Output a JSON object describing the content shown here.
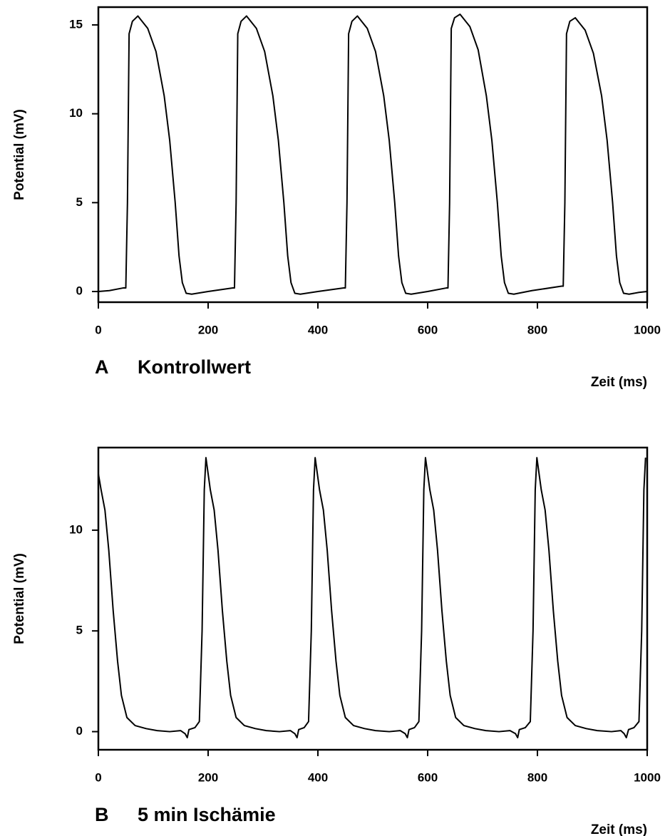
{
  "chart_data": [
    {
      "type": "line",
      "panel": "A",
      "title": "Kontrollwert",
      "xlabel": "Zeit (ms)",
      "ylabel": "Potential (mV)",
      "color": "#000000",
      "xlim": [
        0,
        1000
      ],
      "ylim": [
        -0.6,
        16
      ],
      "xticks": [
        0,
        200,
        400,
        600,
        800,
        1000
      ],
      "yticks": [
        0,
        5,
        10,
        15
      ],
      "x": [
        0,
        20,
        45,
        50,
        53,
        56,
        62,
        72,
        90,
        105,
        120,
        130,
        140,
        147,
        153,
        160,
        170,
        200,
        245,
        248,
        251,
        254,
        260,
        270,
        288,
        303,
        318,
        328,
        338,
        345,
        351,
        358,
        368,
        400,
        447,
        450,
        453,
        456,
        462,
        472,
        490,
        505,
        520,
        530,
        540,
        547,
        553,
        560,
        570,
        600,
        634,
        637,
        640,
        643,
        649,
        659,
        677,
        692,
        707,
        717,
        727,
        734,
        740,
        747,
        757,
        790,
        844,
        847,
        850,
        853,
        859,
        869,
        887,
        902,
        917,
        927,
        937,
        944,
        950,
        957,
        967,
        985,
        1000
      ],
      "values": [
        0,
        0.05,
        0.2,
        0.2,
        5,
        14.5,
        15.2,
        15.5,
        14.8,
        13.5,
        11,
        8.5,
        5,
        2,
        0.5,
        -0.1,
        -0.15,
        0,
        0.2,
        0.2,
        5,
        14.5,
        15.2,
        15.5,
        14.8,
        13.5,
        11,
        8.5,
        5,
        2,
        0.5,
        -0.1,
        -0.15,
        0,
        0.2,
        0.2,
        5,
        14.5,
        15.2,
        15.5,
        14.8,
        13.5,
        11,
        8.5,
        5,
        2,
        0.5,
        -0.1,
        -0.15,
        0,
        0.2,
        0.2,
        5,
        14.8,
        15.4,
        15.6,
        14.9,
        13.6,
        11,
        8.5,
        5,
        2,
        0.5,
        -0.1,
        -0.15,
        0.05,
        0.3,
        0.3,
        5,
        14.5,
        15.2,
        15.4,
        14.7,
        13.4,
        11,
        8.5,
        5,
        2,
        0.5,
        -0.1,
        -0.15,
        -0.05,
        0
      ]
    },
    {
      "type": "line",
      "panel": "B",
      "title": "5 min Ischämie",
      "xlabel": "Zeit (ms)",
      "ylabel": "Potential (mV)",
      "color": "#000000",
      "xlim": [
        0,
        1000
      ],
      "ylim": [
        -0.9,
        14.1
      ],
      "xticks": [
        0,
        200,
        400,
        600,
        800,
        1000
      ],
      "yticks": [
        0,
        5,
        10
      ],
      "x": [
        0,
        5,
        12,
        19,
        27,
        35,
        42,
        52,
        67,
        87,
        107,
        130,
        150,
        158,
        162,
        165,
        176,
        184,
        189,
        193,
        196,
        204,
        211,
        218,
        226,
        234,
        241,
        251,
        266,
        286,
        306,
        330,
        350,
        358,
        362,
        365,
        375,
        383,
        388,
        392,
        395,
        403,
        410,
        417,
        425,
        433,
        440,
        450,
        465,
        485,
        505,
        530,
        550,
        559,
        563,
        566,
        576,
        584,
        589,
        593,
        596,
        604,
        611,
        618,
        626,
        634,
        641,
        651,
        666,
        686,
        706,
        730,
        750,
        760,
        764,
        767,
        778,
        787,
        792,
        796,
        799,
        807,
        814,
        821,
        829,
        837,
        844,
        854,
        869,
        889,
        909,
        935,
        952,
        958,
        962,
        966,
        976,
        985,
        990,
        994,
        997
      ],
      "values": [
        12.8,
        12,
        11,
        9,
        6,
        3.5,
        1.8,
        0.7,
        0.3,
        0.15,
        0.05,
        0,
        0.05,
        -0.1,
        -0.3,
        0.1,
        0.2,
        0.5,
        5,
        12,
        13.6,
        12,
        11,
        9,
        6,
        3.5,
        1.8,
        0.7,
        0.3,
        0.15,
        0.05,
        0,
        0.05,
        -0.1,
        -0.3,
        0.1,
        0.2,
        0.5,
        5,
        12,
        13.6,
        12,
        11,
        9,
        6,
        3.5,
        1.8,
        0.7,
        0.3,
        0.15,
        0.05,
        0,
        0.05,
        -0.1,
        -0.3,
        0.1,
        0.2,
        0.5,
        5,
        12,
        13.6,
        12,
        11,
        9,
        6,
        3.5,
        1.8,
        0.7,
        0.3,
        0.15,
        0.05,
        0,
        0.05,
        -0.1,
        -0.3,
        0.1,
        0.2,
        0.5,
        5,
        12,
        13.6,
        12,
        11,
        9,
        6,
        3.5,
        1.8,
        0.7,
        0.3,
        0.15,
        0.05,
        0,
        0.05,
        -0.1,
        -0.3,
        0.1,
        0.2,
        0.5,
        5,
        12,
        13.6
      ]
    }
  ]
}
